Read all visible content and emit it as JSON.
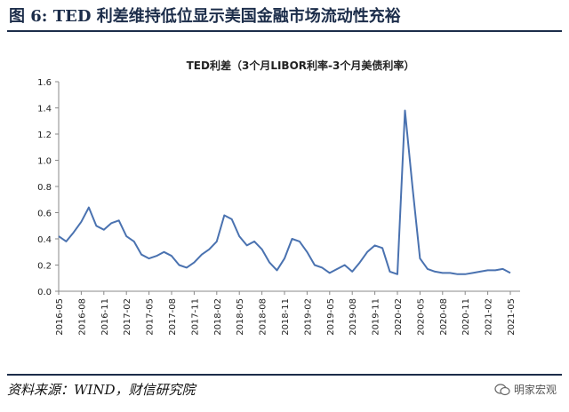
{
  "figure": {
    "title": "图 6: TED 利差维持低位显示美国金融市场流动性充裕",
    "source": "资料来源：WIND，财信研究院",
    "watermark": "明家宏观",
    "watermark_icon": "wechat-icon"
  },
  "chart_data": {
    "type": "line",
    "title": "TED利差（3个月LIBOR利率-3个月美债利率）",
    "xlabel": "",
    "ylabel": "",
    "ylim": [
      0.0,
      1.6
    ],
    "yticks": [
      "0.0",
      "0.2",
      "0.4",
      "0.6",
      "0.8",
      "1.0",
      "1.2",
      "1.4",
      "1.6"
    ],
    "xticks": [
      "2016-05",
      "2016-08",
      "2016-11",
      "2017-02",
      "2017-05",
      "2017-08",
      "2017-11",
      "2018-02",
      "2018-05",
      "2018-08",
      "2018-11",
      "2019-02",
      "2019-05",
      "2019-08",
      "2019-11",
      "2020-02",
      "2020-05",
      "2020-08",
      "2020-11",
      "2021-02",
      "2021-05"
    ],
    "grid": false,
    "line_color": "#4a72b0",
    "series": [
      {
        "x": [
          "2016-05",
          "2016-06",
          "2016-07",
          "2016-08",
          "2016-09",
          "2016-10",
          "2016-11",
          "2016-12",
          "2017-01",
          "2017-02",
          "2017-03",
          "2017-04",
          "2017-05",
          "2017-06",
          "2017-07",
          "2017-08",
          "2017-09",
          "2017-10",
          "2017-11",
          "2017-12",
          "2018-01",
          "2018-02",
          "2018-03",
          "2018-04",
          "2018-05",
          "2018-06",
          "2018-07",
          "2018-08",
          "2018-09",
          "2018-10",
          "2018-11",
          "2018-12",
          "2019-01",
          "2019-02",
          "2019-03",
          "2019-04",
          "2019-05",
          "2019-06",
          "2019-07",
          "2019-08",
          "2019-09",
          "2019-10",
          "2019-11",
          "2019-12",
          "2020-01",
          "2020-02",
          "2020-03",
          "2020-04",
          "2020-05",
          "2020-06",
          "2020-07",
          "2020-08",
          "2020-09",
          "2020-10",
          "2020-11",
          "2020-12",
          "2021-01",
          "2021-02",
          "2021-03",
          "2021-04",
          "2021-05"
        ],
        "values": [
          0.42,
          0.38,
          0.45,
          0.53,
          0.64,
          0.5,
          0.47,
          0.52,
          0.54,
          0.42,
          0.38,
          0.28,
          0.25,
          0.27,
          0.3,
          0.27,
          0.2,
          0.18,
          0.22,
          0.28,
          0.32,
          0.38,
          0.58,
          0.55,
          0.42,
          0.35,
          0.38,
          0.32,
          0.22,
          0.16,
          0.25,
          0.4,
          0.38,
          0.3,
          0.2,
          0.18,
          0.14,
          0.17,
          0.2,
          0.15,
          0.22,
          0.3,
          0.35,
          0.33,
          0.15,
          0.13,
          1.38,
          0.8,
          0.25,
          0.17,
          0.15,
          0.14,
          0.14,
          0.13,
          0.13,
          0.14,
          0.15,
          0.16,
          0.16,
          0.17,
          0.14
        ]
      }
    ]
  }
}
